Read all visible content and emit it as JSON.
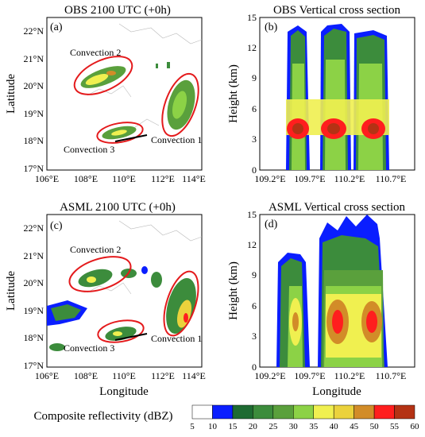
{
  "panels": {
    "a": {
      "title": "OBS 2100 UTC (+0h)",
      "letter": "(a)",
      "y_label": "Latitude",
      "y_ticks": [
        "22°N",
        "21°N",
        "20°N",
        "19°N",
        "18°N",
        "17°N"
      ],
      "x_ticks": [
        "106°E",
        "108°E",
        "110°E",
        "112°E",
        "114°E"
      ],
      "annotations": [
        "Convection 2",
        "Convection 3",
        "Convection 1"
      ]
    },
    "b": {
      "title": "OBS Vertical cross section",
      "letter": "(b)",
      "y_label": "Height (km)",
      "y_ticks": [
        "15",
        "12",
        "9",
        "6",
        "3",
        "0"
      ],
      "x_ticks": [
        "109.2°E",
        "109.7°E",
        "110.2°E",
        "110.7°E"
      ]
    },
    "c": {
      "title": "ASML 2100 UTC (+0h)",
      "letter": "(c)",
      "y_label": "Latitude",
      "x_label": "Longitude",
      "y_ticks": [
        "22°N",
        "21°N",
        "20°N",
        "19°N",
        "18°N",
        "17°N"
      ],
      "x_ticks": [
        "106°E",
        "108°E",
        "110°E",
        "112°E",
        "114°E"
      ],
      "annotations": [
        "Convection 2",
        "Convection 3",
        "Convection 1"
      ]
    },
    "d": {
      "title": "ASML Vertical cross section",
      "letter": "(d)",
      "y_label": "Height (km)",
      "x_label": "Longitude",
      "y_ticks": [
        "15",
        "12",
        "9",
        "6",
        "3",
        "0"
      ],
      "x_ticks": [
        "109.2°E",
        "109.7°E",
        "110.2°E",
        "110.7°E"
      ]
    }
  },
  "colorbar": {
    "label": "Composite reflectivity (dBZ)",
    "ticks": [
      "5",
      "10",
      "15",
      "20",
      "25",
      "30",
      "35",
      "40",
      "45",
      "50",
      "55",
      "60"
    ],
    "colors": [
      "#ffffff",
      "#0a1eff",
      "#1e6b32",
      "#3c8c3c",
      "#5aa03c",
      "#8cd246",
      "#f0f050",
      "#ebd23c",
      "#d28c28",
      "#ff1e1e",
      "#b43214"
    ]
  }
}
